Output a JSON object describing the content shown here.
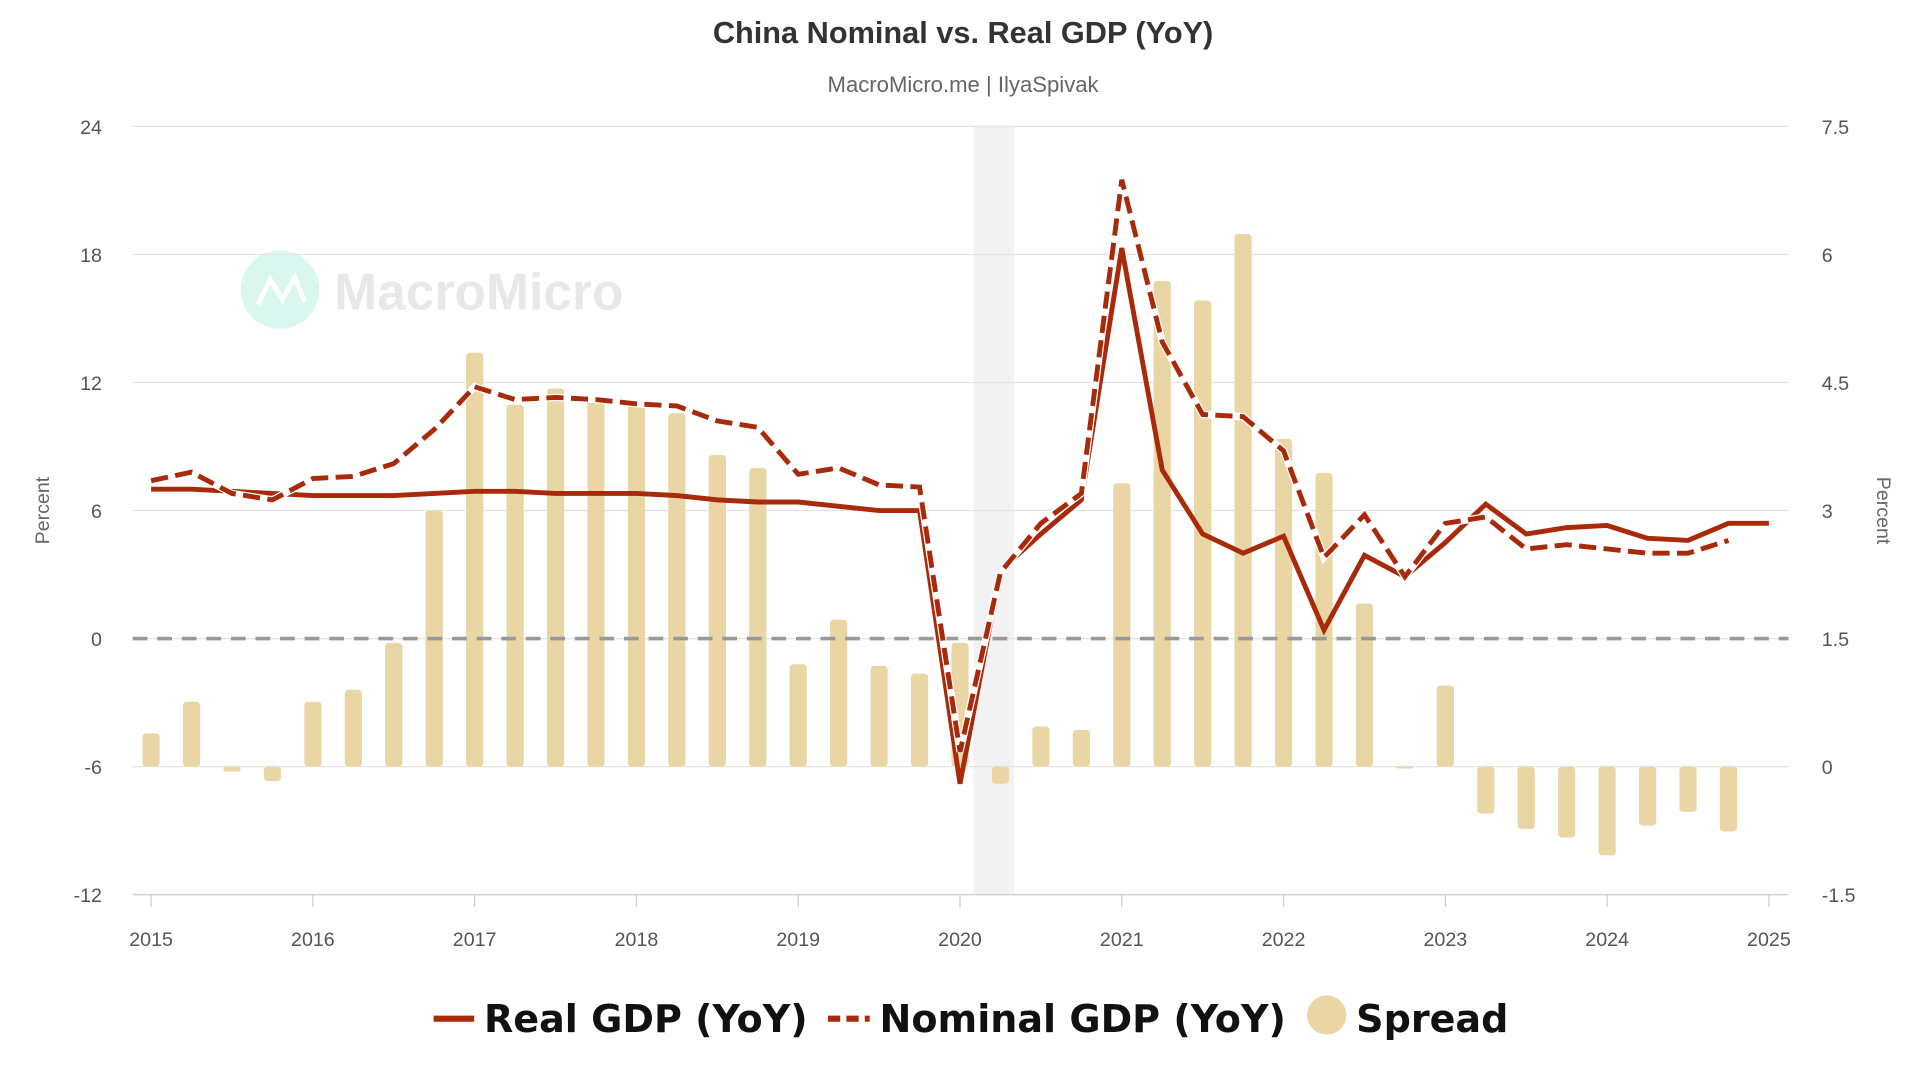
{
  "chart_data": {
    "type": "line+bar",
    "title": "China Nominal vs. Real GDP (YoY)",
    "subtitle": "MacroMicro.me | IlyaSpivak",
    "watermark": "MacroMicro",
    "left_axis": {
      "label": "Percent",
      "range": [
        -12,
        24
      ],
      "ticks": [
        "24",
        "18",
        "12",
        "6",
        "0",
        "-6",
        "-12"
      ]
    },
    "right_axis": {
      "label": "Percent",
      "range": [
        -1.5,
        7.5
      ],
      "ticks": [
        "7.5",
        "6",
        "4.5",
        "3",
        "1.5",
        "0",
        "-1.5"
      ]
    },
    "x_ticks": [
      "2015",
      "2016",
      "2017",
      "2018",
      "2019",
      "2020",
      "2021",
      "2022",
      "2023",
      "2024",
      "2025"
    ],
    "quarters": [
      "2015Q1",
      "2015Q2",
      "2015Q3",
      "2015Q4",
      "2016Q1",
      "2016Q2",
      "2016Q3",
      "2016Q4",
      "2017Q1",
      "2017Q2",
      "2017Q3",
      "2017Q4",
      "2018Q1",
      "2018Q2",
      "2018Q3",
      "2018Q4",
      "2019Q1",
      "2019Q2",
      "2019Q3",
      "2019Q4",
      "2020Q1",
      "2020Q2",
      "2020Q3",
      "2020Q4",
      "2021Q1",
      "2021Q2",
      "2021Q3",
      "2021Q4",
      "2022Q1",
      "2022Q2",
      "2022Q3",
      "2022Q4",
      "2023Q1",
      "2023Q2",
      "2023Q3",
      "2023Q4",
      "2024Q1",
      "2024Q2",
      "2024Q3",
      "2024Q4",
      "2025Q1"
    ],
    "recession_shading": [
      "2020Q1",
      "2020Q2"
    ],
    "zero_line": 0,
    "grid": true,
    "legend_position": "bottom",
    "series": [
      {
        "name": "Real GDP (YoY)",
        "axis": "left",
        "style": "solid",
        "color": "#A82A0A",
        "values": [
          7.0,
          7.0,
          6.9,
          6.8,
          6.7,
          6.7,
          6.7,
          6.8,
          6.9,
          6.9,
          6.8,
          6.8,
          6.8,
          6.7,
          6.5,
          6.4,
          6.4,
          6.2,
          6.0,
          6.0,
          -6.8,
          3.2,
          4.9,
          6.5,
          18.3,
          7.9,
          4.9,
          4.0,
          4.8,
          0.4,
          3.9,
          2.9,
          4.5,
          6.3,
          4.9,
          5.2,
          5.3,
          4.7,
          4.6,
          5.4,
          5.4
        ]
      },
      {
        "name": "Nominal GDP (YoY)",
        "axis": "left",
        "style": "dashed",
        "color": "#A82A0A",
        "values": [
          7.4,
          7.8,
          6.8,
          6.5,
          7.5,
          7.6,
          8.2,
          9.8,
          11.8,
          11.2,
          11.3,
          11.2,
          11.0,
          10.9,
          10.2,
          9.9,
          7.7,
          8.0,
          7.2,
          7.1,
          -5.3,
          3.1,
          5.4,
          6.8,
          21.5,
          13.9,
          10.5,
          10.4,
          8.8,
          3.8,
          5.8,
          2.9,
          5.4,
          5.7,
          4.2,
          4.4,
          4.2,
          4.0,
          4.0,
          4.6,
          null
        ]
      },
      {
        "name": "Spread",
        "axis": "right",
        "style": "bar",
        "color": "#E9D6A4",
        "values": [
          0.39,
          0.76,
          -0.06,
          -0.17,
          0.76,
          0.9,
          1.45,
          3.0,
          4.85,
          4.24,
          4.43,
          4.33,
          4.24,
          4.14,
          3.65,
          3.5,
          1.2,
          1.72,
          1.18,
          1.09,
          1.45,
          -0.2,
          0.47,
          0.43,
          3.32,
          5.69,
          5.46,
          6.24,
          3.84,
          3.44,
          1.91,
          0,
          0.95,
          -0.55,
          -0.73,
          -0.83,
          -1.04,
          -0.69,
          -0.53,
          -0.76,
          null
        ]
      }
    ]
  }
}
